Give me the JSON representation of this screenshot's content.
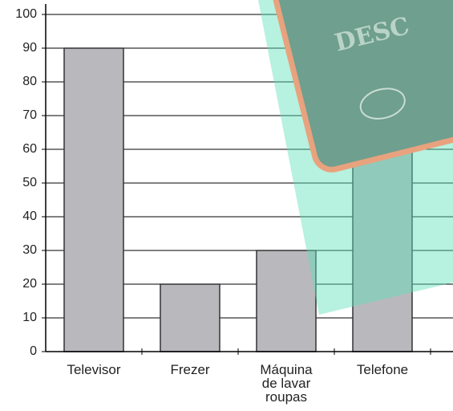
{
  "chart_data": {
    "type": "bar",
    "categories": [
      "Televisor",
      "Frezer",
      "Máquina de lavar roupas",
      "Telefone"
    ],
    "values": [
      90,
      20,
      30,
      60
    ],
    "color": "#b9b8bd",
    "ylim": [
      0,
      100
    ],
    "yticks": [
      0,
      10,
      20,
      30,
      40,
      50,
      60,
      70,
      80,
      90,
      100
    ],
    "grid": true
  },
  "overlay_text": "DESC"
}
